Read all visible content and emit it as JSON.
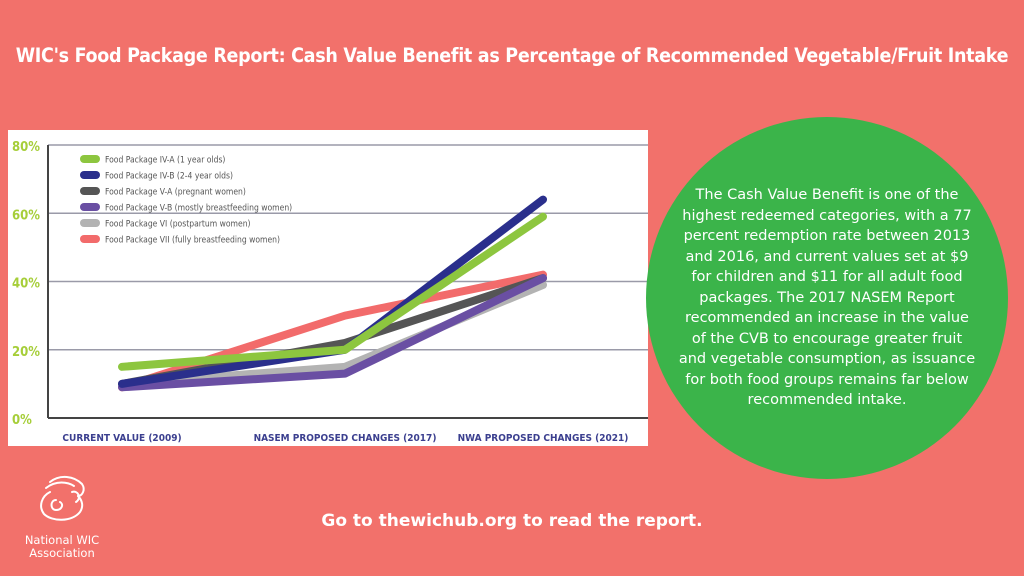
{
  "title": "WIC's Food Package Report: Cash Value Benefit as Percentage of Recommended Vegetable/Fruit Intake",
  "info_text": "The Cash Value Benefit is one of the highest redeemed categories, with a 77 percent redemption rate between 2013 and 2016, and current values set at $9 for children and $11 for all adult food packages. The 2017 NASEM Report recommended an increase in the value of the CVB to encourage greater fruit and vegetable consumption, as issuance for both food groups remains far below recommended intake.",
  "cta": "Go to thewichub.org to read the report.",
  "logo": {
    "line1": "National WIC",
    "line2": "Association"
  },
  "colors": {
    "background": "#f2716b",
    "circle": "#3bb44a",
    "tick": "#a6ce39",
    "xlabel": "#3b3f8f"
  },
  "chart_data": {
    "type": "line",
    "categories": [
      "CURRENT VALUE (2009)",
      "NASEM PROPOSED CHANGES (2017)",
      "NWA PROPOSED CHANGES (2021)"
    ],
    "ylim": [
      0,
      80
    ],
    "yticks": [
      "0%",
      "20%",
      "40%",
      "60%",
      "80%"
    ],
    "ytick_values": [
      0,
      20,
      40,
      60,
      80
    ],
    "grid": true,
    "legend_position": "top-left",
    "series": [
      {
        "name": "Food Package VII (fully breastfeeding women)",
        "color": "#f26b6b",
        "values": [
          9,
          30,
          42
        ]
      },
      {
        "name": "Food Package VI (postpartum women)",
        "color": "#b3b3b3",
        "values": [
          10,
          15,
          39
        ]
      },
      {
        "name": "Food Package V-A (pregnant women)",
        "color": "#555555",
        "values": [
          10,
          22,
          41
        ]
      },
      {
        "name": "Food Package V-B (mostly breastfeeding women)",
        "color": "#6a4fa3",
        "values": [
          9,
          13,
          41
        ]
      },
      {
        "name": "Food Package IV-B (2-4 year olds)",
        "color": "#2a2f8c",
        "values": [
          10,
          20,
          64
        ]
      },
      {
        "name": "Food Package IV-A (1 year olds)",
        "color": "#8dc63f",
        "values": [
          15,
          20,
          59
        ]
      }
    ],
    "legend_order": [
      5,
      4,
      2,
      3,
      1,
      0
    ]
  }
}
